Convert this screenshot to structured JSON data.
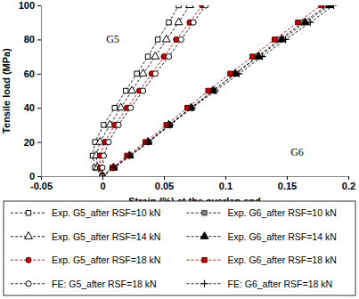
{
  "chart_data": {
    "type": "line",
    "x_label": "Strain (%) at the overlap end",
    "y_label": "Tensile load (MPa)",
    "xlim": [
      -0.05,
      0.2
    ],
    "xticks": [
      -0.05,
      0,
      0.05,
      0.1,
      0.15,
      0.2
    ],
    "ylim": [
      0,
      100
    ],
    "yticks": [
      0,
      20,
      40,
      60,
      80,
      100
    ],
    "grid": false,
    "legend": "bottom",
    "annotations": [
      {
        "text": "G5",
        "x": 0.003,
        "y": 78
      },
      {
        "text": "G6",
        "x": 0.153,
        "y": 12
      }
    ],
    "series": [
      {
        "name": "Exp. G5_after RSF=10 kN",
        "color": "#000000",
        "marker": "square-open",
        "line_style": "dashed",
        "x": [
          0,
          -0.006,
          -0.008,
          -0.006,
          0.001,
          0.01,
          0.019,
          0.028,
          0.037,
          0.045,
          0.054,
          0.062
        ],
        "values": [
          0,
          5,
          12,
          20,
          30,
          40,
          50,
          60,
          70,
          80,
          90,
          100
        ]
      },
      {
        "name": "Exp. G6_after RSF=10 kN",
        "color": "#808080",
        "marker": "square",
        "line_style": "dashed",
        "x": [
          0,
          0.01,
          0.023,
          0.038,
          0.055,
          0.072,
          0.09,
          0.108,
          0.126,
          0.144,
          0.163,
          0.183
        ],
        "values": [
          0,
          5,
          12,
          20,
          30,
          40,
          50,
          60,
          70,
          80,
          90,
          100
        ]
      },
      {
        "name": "Exp. G5_after RSF=14 kN",
        "color": "#000000",
        "marker": "triangle-open",
        "line_style": "dashed",
        "x": [
          0,
          -0.004,
          -0.005,
          -0.002,
          0.006,
          0.015,
          0.024,
          0.033,
          0.043,
          0.052,
          0.062,
          0.071
        ],
        "values": [
          0,
          5,
          12,
          20,
          30,
          40,
          50,
          60,
          70,
          80,
          90,
          100
        ]
      },
      {
        "name": "Exp. G6_after RSF=14 kN",
        "color": "#000000",
        "marker": "triangle",
        "line_style": "dashed",
        "x": [
          0,
          0.009,
          0.022,
          0.037,
          0.054,
          0.072,
          0.09,
          0.108,
          0.127,
          0.146,
          0.165,
          0.185
        ],
        "values": [
          0,
          5,
          12,
          20,
          30,
          40,
          50,
          60,
          70,
          80,
          90,
          100
        ]
      },
      {
        "name": "Exp. G5_after RSF=18 kN",
        "color": "#c00000",
        "marker": "circle",
        "line_style": "dashed",
        "x": [
          0,
          -0.002,
          -0.002,
          0.002,
          0.01,
          0.02,
          0.03,
          0.04,
          0.05,
          0.06,
          0.071,
          0.081
        ],
        "values": [
          0,
          5,
          12,
          20,
          30,
          40,
          50,
          60,
          70,
          80,
          90,
          100
        ]
      },
      {
        "name": "Exp. G6_after RSF=18 kN",
        "color": "#c00000",
        "marker": "square",
        "line_style": "dashed",
        "x": [
          0,
          0.008,
          0.02,
          0.035,
          0.052,
          0.069,
          0.086,
          0.104,
          0.122,
          0.14,
          0.159,
          0.178
        ],
        "values": [
          0,
          5,
          12,
          20,
          30,
          40,
          50,
          60,
          70,
          80,
          90,
          100
        ]
      },
      {
        "name": "FE: G5_after RSF=18 kN",
        "color": "#000000",
        "marker": "circle-open",
        "line_style": "dashed",
        "x": [
          0,
          0,
          0.001,
          0.005,
          0.013,
          0.023,
          0.033,
          0.043,
          0.054,
          0.064,
          0.074,
          0.084
        ],
        "values": [
          0,
          5,
          12,
          20,
          30,
          40,
          50,
          60,
          70,
          80,
          90,
          100
        ]
      },
      {
        "name": "FE: G6_after RSF=18 kN",
        "color": "#000000",
        "marker": "plus",
        "line_style": "dashed",
        "x": [
          0,
          0.009,
          0.022,
          0.037,
          0.055,
          0.073,
          0.092,
          0.111,
          0.13,
          0.149,
          0.169,
          0.188
        ],
        "values": [
          0,
          5,
          12,
          20,
          30,
          40,
          50,
          60,
          70,
          80,
          90,
          100
        ]
      }
    ]
  }
}
